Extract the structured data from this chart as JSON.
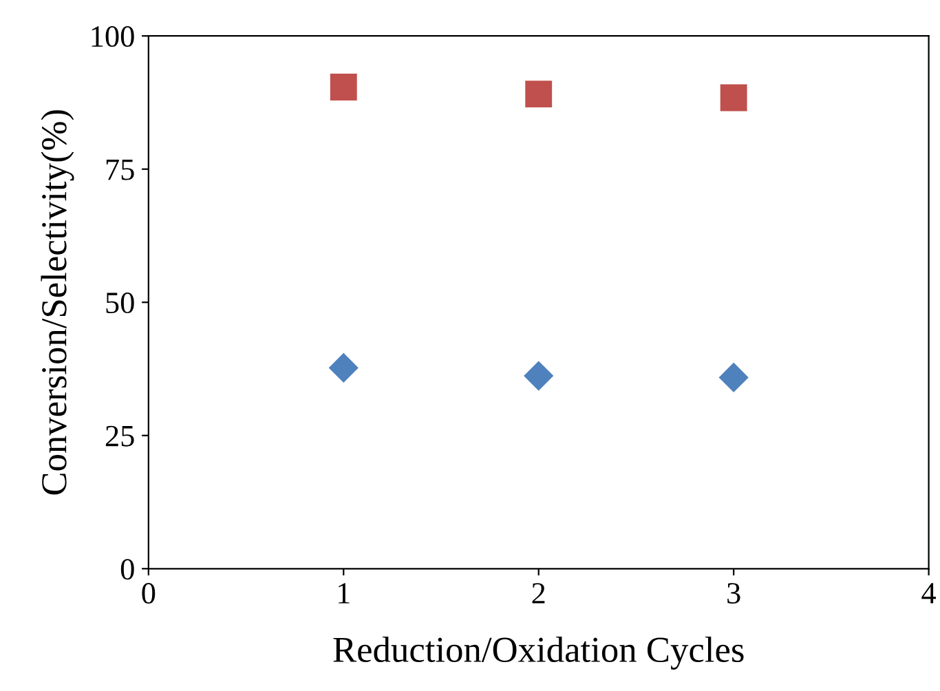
{
  "chart_data": {
    "type": "scatter",
    "xlabel": "Reduction/Oxidation Cycles",
    "ylabel": "Conversion/Selectivity(%)",
    "x": [
      1,
      2,
      3
    ],
    "series": [
      {
        "color": "#c0504d",
        "marker": "square",
        "values": [
          90.4,
          89.1,
          88.4
        ]
      },
      {
        "color": "#4f81bd",
        "marker": "diamond",
        "values": [
          37.7,
          36.2,
          35.9
        ]
      }
    ],
    "xlim": [
      0,
      4
    ],
    "xticks": [
      0,
      1,
      2,
      3,
      4
    ],
    "ylim": [
      0,
      100
    ],
    "yticks": [
      0,
      25,
      50,
      75,
      100
    ],
    "grid": false,
    "legend": false
  }
}
